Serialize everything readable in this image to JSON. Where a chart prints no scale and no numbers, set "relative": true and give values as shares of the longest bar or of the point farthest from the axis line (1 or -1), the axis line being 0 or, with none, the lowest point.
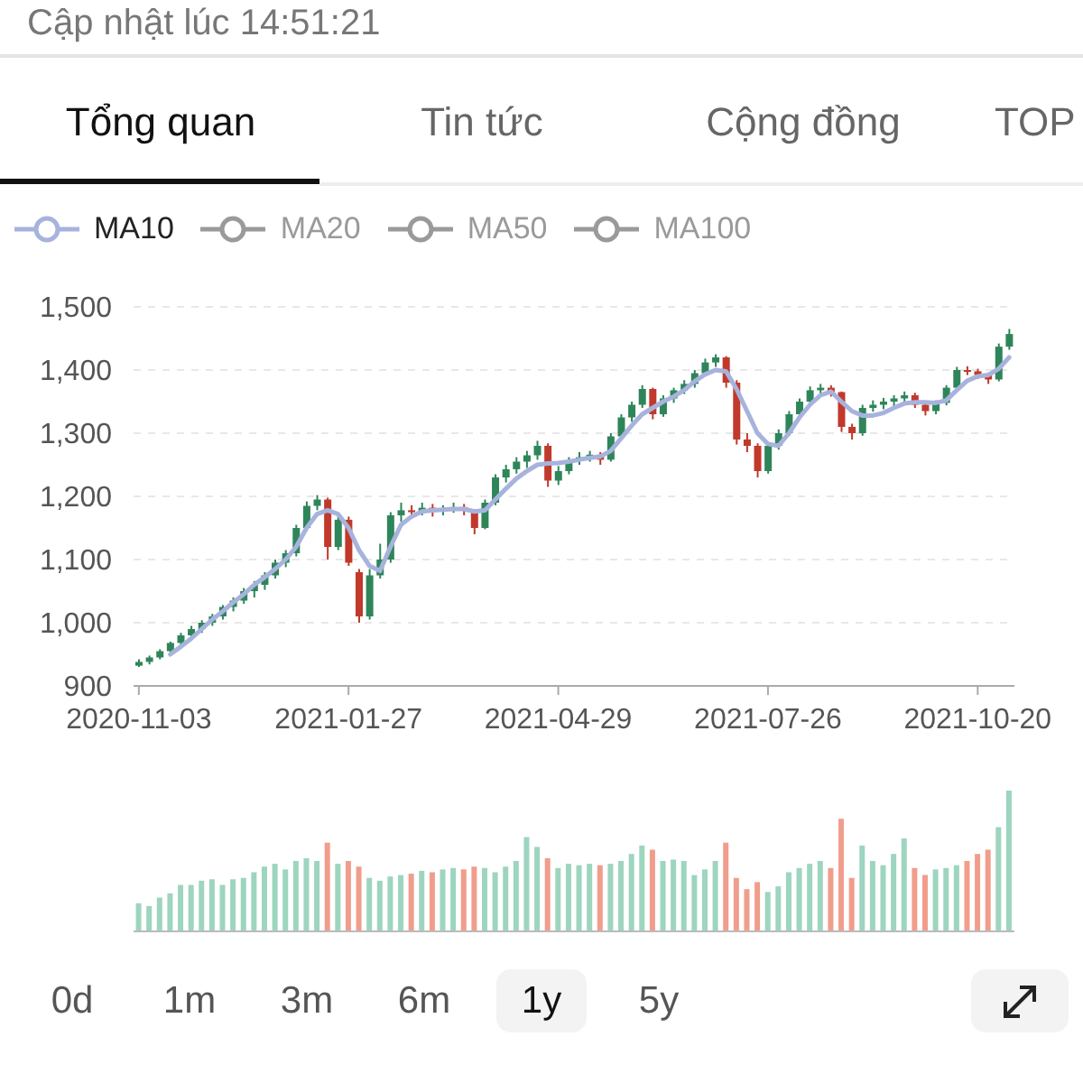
{
  "chart_data": [
    {
      "type": "candlestick",
      "categories": [
        "2020-11-03",
        null,
        null,
        null,
        null,
        null,
        null,
        null,
        null,
        null,
        null,
        null,
        null,
        null,
        null,
        null,
        null,
        null,
        null,
        null,
        "2021-01-27",
        null,
        null,
        null,
        null,
        null,
        null,
        null,
        null,
        null,
        null,
        null,
        null,
        null,
        null,
        null,
        null,
        null,
        null,
        null,
        "2021-04-29",
        null,
        null,
        null,
        null,
        null,
        null,
        null,
        null,
        null,
        null,
        null,
        null,
        null,
        null,
        null,
        null,
        null,
        null,
        null,
        "2021-07-26",
        null,
        null,
        null,
        null,
        null,
        null,
        null,
        null,
        null,
        null,
        null,
        null,
        null,
        null,
        null,
        null,
        null,
        null,
        null,
        "2021-10-20",
        null,
        null,
        null
      ],
      "ohlc": [
        [
          932,
          942,
          930,
          938
        ],
        [
          938,
          948,
          934,
          945
        ],
        [
          945,
          958,
          942,
          955
        ],
        [
          955,
          970,
          950,
          968
        ],
        [
          968,
          984,
          963,
          980
        ],
        [
          980,
          995,
          975,
          990
        ],
        [
          990,
          1004,
          984,
          1000
        ],
        [
          1000,
          1014,
          995,
          1010
        ],
        [
          1010,
          1028,
          1005,
          1025
        ],
        [
          1025,
          1040,
          1018,
          1035
        ],
        [
          1035,
          1055,
          1030,
          1050
        ],
        [
          1050,
          1066,
          1040,
          1060
        ],
        [
          1060,
          1080,
          1052,
          1075
        ],
        [
          1075,
          1100,
          1070,
          1095
        ],
        [
          1095,
          1115,
          1088,
          1110
        ],
        [
          1110,
          1155,
          1105,
          1150
        ],
        [
          1150,
          1192,
          1145,
          1185
        ],
        [
          1185,
          1202,
          1178,
          1195
        ],
        [
          1195,
          1198,
          1100,
          1120
        ],
        [
          1120,
          1170,
          1115,
          1163
        ],
        [
          1163,
          1168,
          1090,
          1095
        ],
        [
          1080,
          1085,
          1000,
          1010
        ],
        [
          1010,
          1085,
          1005,
          1075
        ],
        [
          1075,
          1125,
          1070,
          1100
        ],
        [
          1100,
          1175,
          1095,
          1170
        ],
        [
          1170,
          1190,
          1160,
          1178
        ],
        [
          1178,
          1186,
          1165,
          1175
        ],
        [
          1175,
          1190,
          1170,
          1182
        ],
        [
          1182,
          1188,
          1168,
          1176
        ],
        [
          1176,
          1186,
          1170,
          1180
        ],
        [
          1180,
          1190,
          1174,
          1183
        ],
        [
          1183,
          1188,
          1170,
          1178
        ],
        [
          1178,
          1180,
          1140,
          1150
        ],
        [
          1150,
          1195,
          1148,
          1190
        ],
        [
          1190,
          1235,
          1186,
          1230
        ],
        [
          1230,
          1250,
          1222,
          1243
        ],
        [
          1243,
          1262,
          1236,
          1255
        ],
        [
          1255,
          1272,
          1245,
          1265
        ],
        [
          1265,
          1288,
          1258,
          1280
        ],
        [
          1280,
          1284,
          1215,
          1225
        ],
        [
          1225,
          1248,
          1218,
          1240
        ],
        [
          1240,
          1262,
          1235,
          1257
        ],
        [
          1257,
          1270,
          1250,
          1262
        ],
        [
          1262,
          1272,
          1255,
          1266
        ],
        [
          1266,
          1270,
          1250,
          1258
        ],
        [
          1258,
          1300,
          1255,
          1295
        ],
        [
          1295,
          1330,
          1290,
          1325
        ],
        [
          1325,
          1350,
          1318,
          1345
        ],
        [
          1345,
          1376,
          1340,
          1370
        ],
        [
          1370,
          1372,
          1322,
          1330
        ],
        [
          1330,
          1360,
          1326,
          1355
        ],
        [
          1355,
          1372,
          1348,
          1368
        ],
        [
          1368,
          1384,
          1362,
          1378
        ],
        [
          1378,
          1400,
          1372,
          1395
        ],
        [
          1395,
          1418,
          1390,
          1412
        ],
        [
          1412,
          1425,
          1405,
          1420
        ],
        [
          1420,
          1422,
          1372,
          1380
        ],
        [
          1380,
          1384,
          1282,
          1290
        ],
        [
          1290,
          1300,
          1270,
          1280
        ],
        [
          1280,
          1284,
          1230,
          1240
        ],
        [
          1240,
          1286,
          1236,
          1280
        ],
        [
          1280,
          1306,
          1274,
          1300
        ],
        [
          1300,
          1335,
          1296,
          1330
        ],
        [
          1330,
          1355,
          1325,
          1350
        ],
        [
          1350,
          1374,
          1345,
          1368
        ],
        [
          1368,
          1378,
          1360,
          1372
        ],
        [
          1372,
          1376,
          1358,
          1365
        ],
        [
          1365,
          1366,
          1302,
          1310
        ],
        [
          1310,
          1315,
          1290,
          1300
        ],
        [
          1300,
          1345,
          1296,
          1340
        ],
        [
          1340,
          1352,
          1334,
          1345
        ],
        [
          1345,
          1356,
          1338,
          1350
        ],
        [
          1350,
          1360,
          1342,
          1355
        ],
        [
          1355,
          1366,
          1348,
          1360
        ],
        [
          1360,
          1364,
          1340,
          1345
        ],
        [
          1345,
          1350,
          1328,
          1335
        ],
        [
          1335,
          1352,
          1330,
          1348
        ],
        [
          1348,
          1376,
          1344,
          1372
        ],
        [
          1372,
          1405,
          1368,
          1400
        ],
        [
          1400,
          1406,
          1392,
          1398
        ],
        [
          1398,
          1402,
          1386,
          1392
        ],
        [
          1392,
          1396,
          1378,
          1385
        ],
        [
          1385,
          1442,
          1382,
          1437
        ],
        [
          1437,
          1465,
          1432,
          1457
        ]
      ],
      "colors": [
        "#2f855a",
        "#2f855a",
        "#2f855a",
        "#2f855a",
        "#2f855a",
        "#2f855a",
        "#2f855a",
        "#2f855a",
        "#2f855a",
        "#2f855a",
        "#2f855a",
        "#2f855a",
        "#2f855a",
        "#2f855a",
        "#2f855a",
        "#2f855a",
        "#2f855a",
        "#2f855a",
        "#c0392b",
        "#2f855a",
        "#c0392b",
        "#c0392b",
        "#2f855a",
        "#2f855a",
        "#2f855a",
        "#2f855a",
        "#c0392b",
        "#2f855a",
        "#c0392b",
        "#2f855a",
        "#2f855a",
        "#c0392b",
        "#c0392b",
        "#2f855a",
        "#2f855a",
        "#2f855a",
        "#2f855a",
        "#2f855a",
        "#2f855a",
        "#c0392b",
        "#2f855a",
        "#2f855a",
        "#2f855a",
        "#2f855a",
        "#c0392b",
        "#2f855a",
        "#2f855a",
        "#2f855a",
        "#2f855a",
        "#c0392b",
        "#2f855a",
        "#2f855a",
        "#2f855a",
        "#2f855a",
        "#2f855a",
        "#2f855a",
        "#c0392b",
        "#c0392b",
        "#c0392b",
        "#c0392b",
        "#2f855a",
        "#2f855a",
        "#2f855a",
        "#2f855a",
        "#2f855a",
        "#2f855a",
        "#c0392b",
        "#c0392b",
        "#c0392b",
        "#2f855a",
        "#2f855a",
        "#2f855a",
        "#2f855a",
        "#2f855a",
        "#c0392b",
        "#c0392b",
        "#2f855a",
        "#2f855a",
        "#2f855a",
        "#c0392b",
        "#c0392b",
        "#c0392b",
        "#2f855a",
        "#2f855a"
      ],
      "series": [
        {
          "name": "MA10",
          "type": "line",
          "color": "#a7b3dd",
          "values": [
            null,
            null,
            null,
            950,
            962,
            975,
            990,
            1005,
            1018,
            1032,
            1045,
            1060,
            1072,
            1085,
            1100,
            1120,
            1150,
            1172,
            1178,
            1172,
            1150,
            1115,
            1090,
            1082,
            1120,
            1155,
            1168,
            1176,
            1178,
            1179,
            1180,
            1180,
            1176,
            1178,
            1195,
            1212,
            1228,
            1240,
            1250,
            1252,
            1253,
            1255,
            1258,
            1261,
            1263,
            1272,
            1292,
            1312,
            1330,
            1340,
            1350,
            1358,
            1368,
            1382,
            1393,
            1400,
            1398,
            1370,
            1335,
            1300,
            1283,
            1280,
            1300,
            1325,
            1345,
            1360,
            1366,
            1350,
            1335,
            1328,
            1328,
            1332,
            1340,
            1347,
            1349,
            1349,
            1348,
            1352,
            1368,
            1383,
            1390,
            1392,
            1402,
            1420
          ]
        },
        {
          "name": "MA20",
          "type": "line",
          "color": "#9a9a9a",
          "values": [
            null,
            null,
            null,
            null,
            null,
            null,
            null,
            null,
            null,
            null,
            null,
            null,
            null,
            null,
            null,
            null,
            null,
            null,
            null,
            null,
            null,
            null,
            null,
            null,
            null,
            null,
            null,
            null,
            null,
            null,
            null,
            null,
            null,
            null,
            null,
            null,
            null,
            null,
            null,
            null,
            null,
            null,
            null,
            null,
            null,
            null,
            null,
            null,
            null,
            null,
            null,
            null,
            null,
            null,
            null,
            null,
            null,
            null,
            null,
            null,
            null,
            null,
            null,
            null,
            null,
            null,
            null,
            null,
            null,
            null,
            null,
            null,
            null,
            null,
            null,
            null,
            null,
            null,
            null,
            null,
            null,
            null,
            null,
            null
          ]
        },
        {
          "name": "MA50",
          "type": "line",
          "color": "#9a9a9a",
          "values": [
            null,
            null,
            null,
            null,
            null,
            null,
            null,
            null,
            null,
            null,
            null,
            null,
            null,
            null,
            null,
            null,
            null,
            null,
            null,
            null,
            null,
            null,
            null,
            null,
            null,
            null,
            null,
            null,
            null,
            null,
            null,
            null,
            null,
            null,
            null,
            null,
            null,
            null,
            null,
            null,
            null,
            null,
            null,
            null,
            null,
            null,
            null,
            null,
            null,
            null,
            null,
            null,
            null,
            null,
            null,
            null,
            null,
            null,
            null,
            null,
            null,
            null,
            null,
            null,
            null,
            null,
            null,
            null,
            null,
            null,
            null,
            null,
            null,
            null,
            null,
            null,
            null,
            null,
            null,
            null,
            null,
            null,
            null,
            null
          ]
        },
        {
          "name": "MA100",
          "type": "line",
          "color": "#9a9a9a",
          "values": [
            null,
            null,
            null,
            null,
            null,
            null,
            null,
            null,
            null,
            null,
            null,
            null,
            null,
            null,
            null,
            null,
            null,
            null,
            null,
            null,
            null,
            null,
            null,
            null,
            null,
            null,
            null,
            null,
            null,
            null,
            null,
            null,
            null,
            null,
            null,
            null,
            null,
            null,
            null,
            null,
            null,
            null,
            null,
            null,
            null,
            null,
            null,
            null,
            null,
            null,
            null,
            null,
            null,
            null,
            null,
            null,
            null,
            null,
            null,
            null,
            null,
            null,
            null,
            null,
            null,
            null,
            null,
            null,
            null,
            null,
            null,
            null,
            null,
            null,
            null,
            null,
            null,
            null,
            null,
            null,
            null,
            null,
            null,
            null
          ]
        }
      ],
      "ylim": [
        900,
        1500
      ],
      "yticks": [
        900,
        {
          "value": 1000,
          "label": "1,000"
        },
        {
          "value": 1100,
          "label": "1,100"
        },
        {
          "value": 1200,
          "label": "1,200"
        },
        {
          "value": 1300,
          "label": "1,300"
        },
        {
          "value": 1400,
          "label": "1,400"
        },
        {
          "value": 1500,
          "label": "1,500"
        }
      ],
      "grid": "y",
      "legend": "top left",
      "annotations": [
        "Cập nhật lúc 14:51:21",
        "Tổng quan",
        "Tin tức",
        "Cộng đồng",
        "TOP"
      ]
    },
    {
      "type": "bar",
      "relative": true,
      "categories": [
        null,
        null,
        null,
        null,
        null,
        null,
        null,
        null,
        null,
        null,
        null,
        null,
        null,
        null,
        null,
        null,
        null,
        null,
        null,
        null,
        null,
        null,
        null,
        null,
        null,
        null,
        null,
        null,
        null,
        null,
        null,
        null,
        null,
        null,
        null,
        null,
        null,
        null,
        null,
        null,
        null,
        null,
        null,
        null,
        null,
        null,
        null,
        null,
        null,
        null,
        null,
        null,
        null,
        null,
        null,
        null,
        null,
        null,
        null,
        null,
        null,
        null,
        null,
        null,
        null,
        null,
        null,
        null,
        null,
        null,
        null,
        null,
        null,
        null,
        null,
        null,
        null,
        null,
        null,
        null,
        null,
        null,
        null,
        null
      ],
      "values": [
        0.2,
        0.18,
        0.24,
        0.27,
        0.33,
        0.33,
        0.36,
        0.37,
        0.33,
        0.37,
        0.38,
        0.42,
        0.46,
        0.48,
        0.44,
        0.5,
        0.52,
        0.5,
        0.63,
        0.48,
        0.5,
        0.46,
        0.38,
        0.36,
        0.39,
        0.4,
        0.41,
        0.43,
        0.42,
        0.44,
        0.45,
        0.44,
        0.46,
        0.45,
        0.42,
        0.46,
        0.5,
        0.67,
        0.6,
        0.52,
        0.45,
        0.48,
        0.47,
        0.48,
        0.47,
        0.48,
        0.5,
        0.55,
        0.61,
        0.58,
        0.5,
        0.51,
        0.5,
        0.4,
        0.44,
        0.5,
        0.63,
        0.38,
        0.3,
        0.35,
        0.28,
        0.32,
        0.42,
        0.45,
        0.48,
        0.5,
        0.45,
        0.8,
        0.38,
        0.61,
        0.5,
        0.47,
        0.55,
        0.66,
        0.45,
        0.4,
        0.44,
        0.45,
        0.47,
        0.5,
        0.55,
        0.58,
        0.74,
        1
      ],
      "colors": [
        "#9dd5bf",
        "#9dd5bf",
        "#9dd5bf",
        "#9dd5bf",
        "#9dd5bf",
        "#9dd5bf",
        "#9dd5bf",
        "#9dd5bf",
        "#9dd5bf",
        "#9dd5bf",
        "#9dd5bf",
        "#9dd5bf",
        "#9dd5bf",
        "#9dd5bf",
        "#9dd5bf",
        "#9dd5bf",
        "#9dd5bf",
        "#9dd5bf",
        "#f19d8c",
        "#9dd5bf",
        "#f19d8c",
        "#f19d8c",
        "#9dd5bf",
        "#9dd5bf",
        "#9dd5bf",
        "#9dd5bf",
        "#f19d8c",
        "#9dd5bf",
        "#f19d8c",
        "#9dd5bf",
        "#9dd5bf",
        "#f19d8c",
        "#f19d8c",
        "#9dd5bf",
        "#9dd5bf",
        "#9dd5bf",
        "#9dd5bf",
        "#9dd5bf",
        "#9dd5bf",
        "#f19d8c",
        "#9dd5bf",
        "#9dd5bf",
        "#9dd5bf",
        "#9dd5bf",
        "#f19d8c",
        "#9dd5bf",
        "#9dd5bf",
        "#9dd5bf",
        "#9dd5bf",
        "#f19d8c",
        "#9dd5bf",
        "#9dd5bf",
        "#9dd5bf",
        "#9dd5bf",
        "#9dd5bf",
        "#9dd5bf",
        "#f19d8c",
        "#f19d8c",
        "#f19d8c",
        "#f19d8c",
        "#9dd5bf",
        "#9dd5bf",
        "#9dd5bf",
        "#9dd5bf",
        "#9dd5bf",
        "#9dd5bf",
        "#f19d8c",
        "#f19d8c",
        "#f19d8c",
        "#9dd5bf",
        "#9dd5bf",
        "#9dd5bf",
        "#9dd5bf",
        "#9dd5bf",
        "#f19d8c",
        "#f19d8c",
        "#9dd5bf",
        "#9dd5bf",
        "#9dd5bf",
        "#f19d8c",
        "#f19d8c",
        "#f19d8c",
        "#9dd5bf",
        "#9dd5bf"
      ],
      "annotations": [
        "0d",
        "1m",
        "3m",
        "6m",
        "1y",
        "5y"
      ]
    }
  ]
}
